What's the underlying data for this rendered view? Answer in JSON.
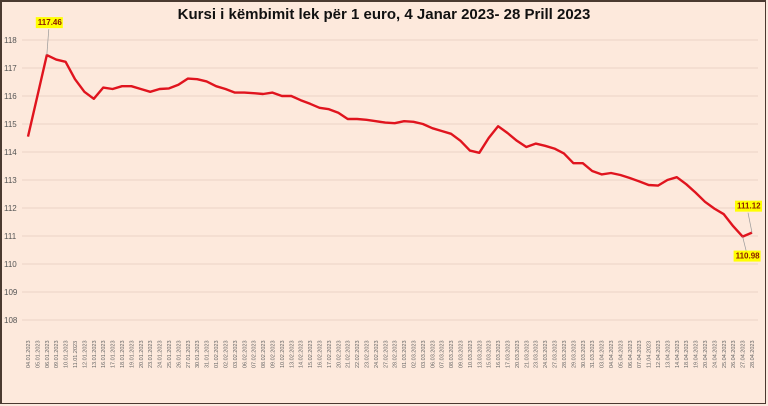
{
  "chart_data": {
    "type": "line",
    "title": "Kursi i këmbimit lek për 1 euro, 4 Janar 2023- 28 Prill 2023",
    "xlabel": "",
    "ylabel": "",
    "ylim": [
      108,
      118
    ],
    "yticks": [
      108,
      109,
      110,
      111,
      112,
      113,
      114,
      115,
      116,
      117,
      118
    ],
    "grid": true,
    "legend": null,
    "line_color": "#e0141e",
    "background": "#fde9dc",
    "x": [
      "04.01.2023",
      "05.01.2023",
      "06.01.2023",
      "09.01.2023",
      "10.01.2023",
      "11.01.2023",
      "12.01.2023",
      "13.01.2023",
      "16.01.2023",
      "17.01.2023",
      "18.01.2023",
      "19.01.2023",
      "20.01.2023",
      "23.01.2023",
      "24.01.2023",
      "25.01.2023",
      "26.01.2023",
      "27.01.2023",
      "30.01.2023",
      "31.01.2023",
      "01.02.2023",
      "02.02.2023",
      "03.02.2023",
      "06.02.2023",
      "07.02.2023",
      "08.02.2023",
      "09.02.2023",
      "10.02.2023",
      "13.02.2023",
      "14.02.2023",
      "15.02.2023",
      "16.02.2023",
      "17.02.2023",
      "20.02.2023",
      "21.02.2023",
      "22.02.2023",
      "23.02.2023",
      "24.02.2023",
      "27.02.2023",
      "28.02.2023",
      "01.03.2023",
      "02.03.2023",
      "03.03.2023",
      "06.03.2023",
      "07.03.2023",
      "08.03.2023",
      "09.03.2023",
      "10.03.2023",
      "13.03.2023",
      "15.03.2023",
      "16.03.2023",
      "17.03.2023",
      "20.03.2023",
      "21.03.2023",
      "23.03.2023",
      "24.03.2023",
      "27.03.2023",
      "28.03.2023",
      "29.03.2023",
      "30.03.2023",
      "31.03.2023",
      "03.04.2023",
      "04.04.2023",
      "05.04.2023",
      "06.04.2023",
      "07.04.2023",
      "11.04.2023",
      "12.04.2023",
      "13.04.2023",
      "14.04.2023",
      "18.04.2023",
      "19.04.2023",
      "20.04.2023",
      "24.04.2023",
      "25.04.2023",
      "26.04.2023",
      "27.04.2023",
      "28.04.2023"
    ],
    "series": [
      {
        "name": "Lek per 1 euro",
        "values": [
          114.55,
          116.0,
          117.46,
          117.3,
          117.22,
          116.6,
          116.15,
          115.9,
          116.3,
          116.25,
          116.35,
          116.35,
          116.25,
          116.15,
          116.25,
          116.27,
          116.4,
          116.62,
          116.6,
          116.52,
          116.35,
          116.25,
          116.12,
          116.12,
          116.1,
          116.07,
          116.12,
          116.0,
          116.0,
          115.85,
          115.72,
          115.58,
          115.53,
          115.4,
          115.18,
          115.18,
          115.15,
          115.1,
          115.05,
          115.03,
          115.1,
          115.08,
          115.0,
          114.85,
          114.75,
          114.65,
          114.4,
          114.05,
          113.97,
          114.5,
          114.92,
          114.68,
          114.4,
          114.18,
          114.3,
          114.22,
          114.12,
          113.95,
          113.6,
          113.6,
          113.32,
          113.2,
          113.25,
          113.18,
          113.07,
          112.95,
          112.82,
          112.8,
          113.0,
          113.1,
          112.85,
          112.55,
          112.22,
          111.98,
          111.78,
          111.35,
          110.98,
          111.12
        ]
      }
    ],
    "annotations": [
      {
        "index": 2,
        "text": "117.46"
      },
      {
        "index": 76,
        "text": "110.98"
      },
      {
        "index": 77,
        "text": "111.12"
      }
    ]
  }
}
